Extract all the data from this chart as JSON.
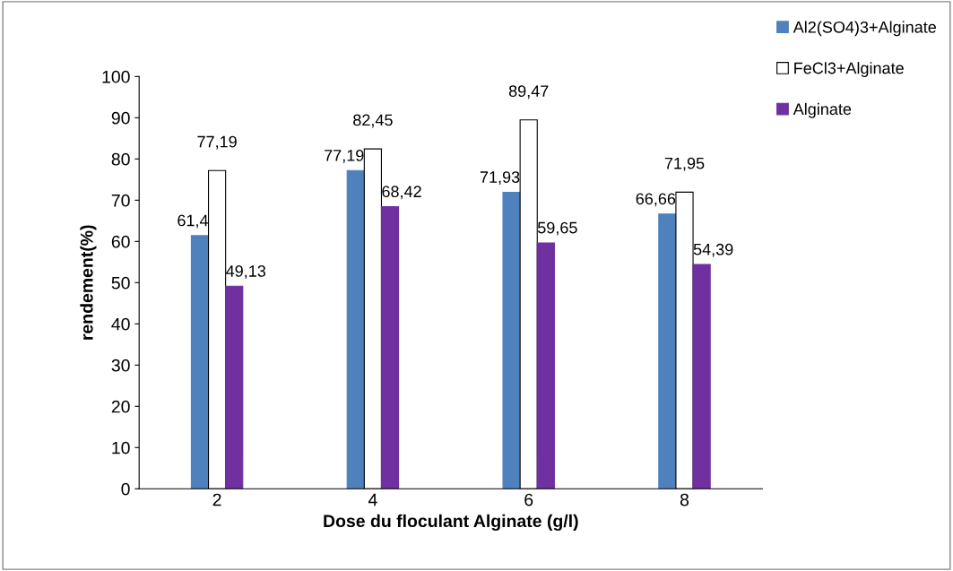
{
  "chart_data": {
    "type": "bar",
    "xlabel": "Dose du floculant Alginate (g/l)",
    "ylabel": "rendement(%)",
    "categories": [
      "2",
      "4",
      "6",
      "8"
    ],
    "series": [
      {
        "name": "Al2(SO4)3+Alginate",
        "color": "#4f81bd",
        "values": [
          61.4,
          77.19,
          71.93,
          66.66
        ],
        "value_labels": [
          "61,4",
          "77,19",
          "71,93",
          "66,66"
        ]
      },
      {
        "name": "FeCl3+Alginate",
        "color": "#ffffff",
        "values": [
          77.19,
          82.45,
          89.47,
          71.95
        ],
        "value_labels": [
          "77,19",
          "82,45",
          "89,47",
          "71,95"
        ]
      },
      {
        "name": "Alginate",
        "color": "#7030a0",
        "values": [
          49.13,
          68.42,
          59.65,
          54.39
        ],
        "value_labels": [
          "49,13",
          "68,42",
          "59,65",
          "54,39"
        ]
      }
    ],
    "ylim": [
      0,
      100
    ],
    "yticks": [
      0,
      10,
      20,
      30,
      40,
      50,
      60,
      70,
      80,
      90,
      100
    ],
    "grid": false,
    "legend": "top right"
  }
}
